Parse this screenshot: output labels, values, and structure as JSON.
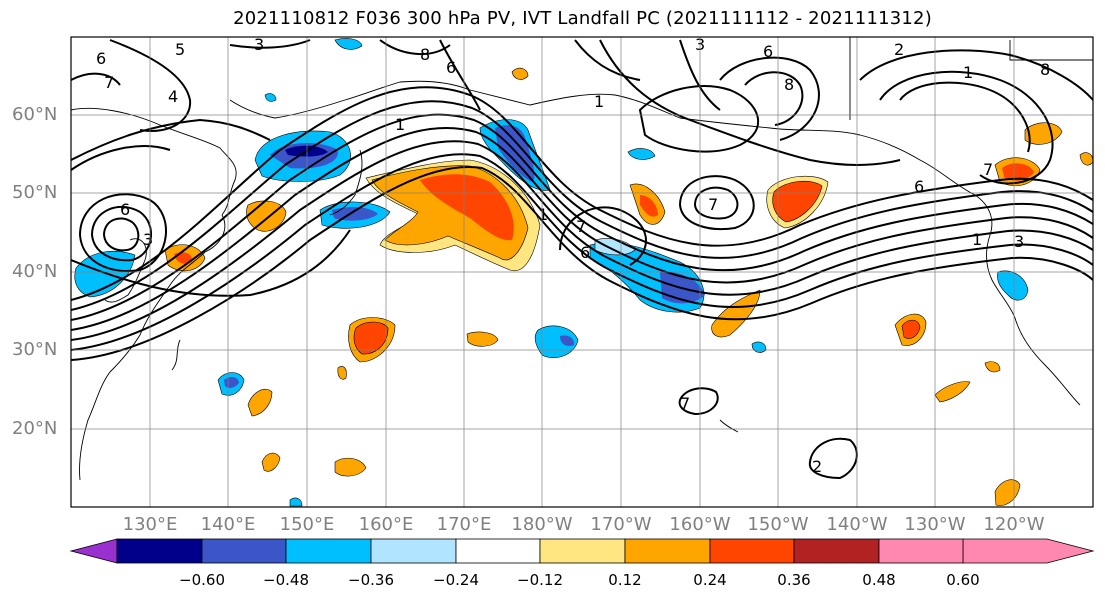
{
  "title": "2021110812 F036 300 hPa PV, IVT Landfall PC (2021111112 - 2021111312)",
  "map": {
    "lat_labels": [
      "60°N",
      "50°N",
      "40°N",
      "30°N",
      "20°N"
    ],
    "lon_labels": [
      "130°E",
      "140°E",
      "150°E",
      "160°E",
      "170°E",
      "180°W",
      "170°W",
      "160°W",
      "150°W",
      "140°W",
      "130°W",
      "120°W"
    ],
    "contour_labels": [
      "6",
      "5",
      "3",
      "7",
      "4",
      "6",
      "3",
      "6",
      "1",
      "8",
      "6",
      "1",
      "7",
      "3",
      "6",
      "8",
      "1",
      "7",
      "6",
      "7",
      "1",
      "3",
      "2",
      "1",
      "8",
      "7",
      "2"
    ]
  },
  "colorbar": {
    "ticks": [
      "−0.60",
      "−0.48",
      "−0.36",
      "−0.24",
      "−0.12",
      "0.12",
      "0.24",
      "0.36",
      "0.48",
      "0.60"
    ],
    "colors": [
      "#9b30d0",
      "#00008b",
      "#3a56c8",
      "#00bfff",
      "#b0e4ff",
      "#ffffff",
      "#ffe680",
      "#ffa500",
      "#ff4500",
      "#b22222",
      "#ff88b0"
    ]
  }
}
